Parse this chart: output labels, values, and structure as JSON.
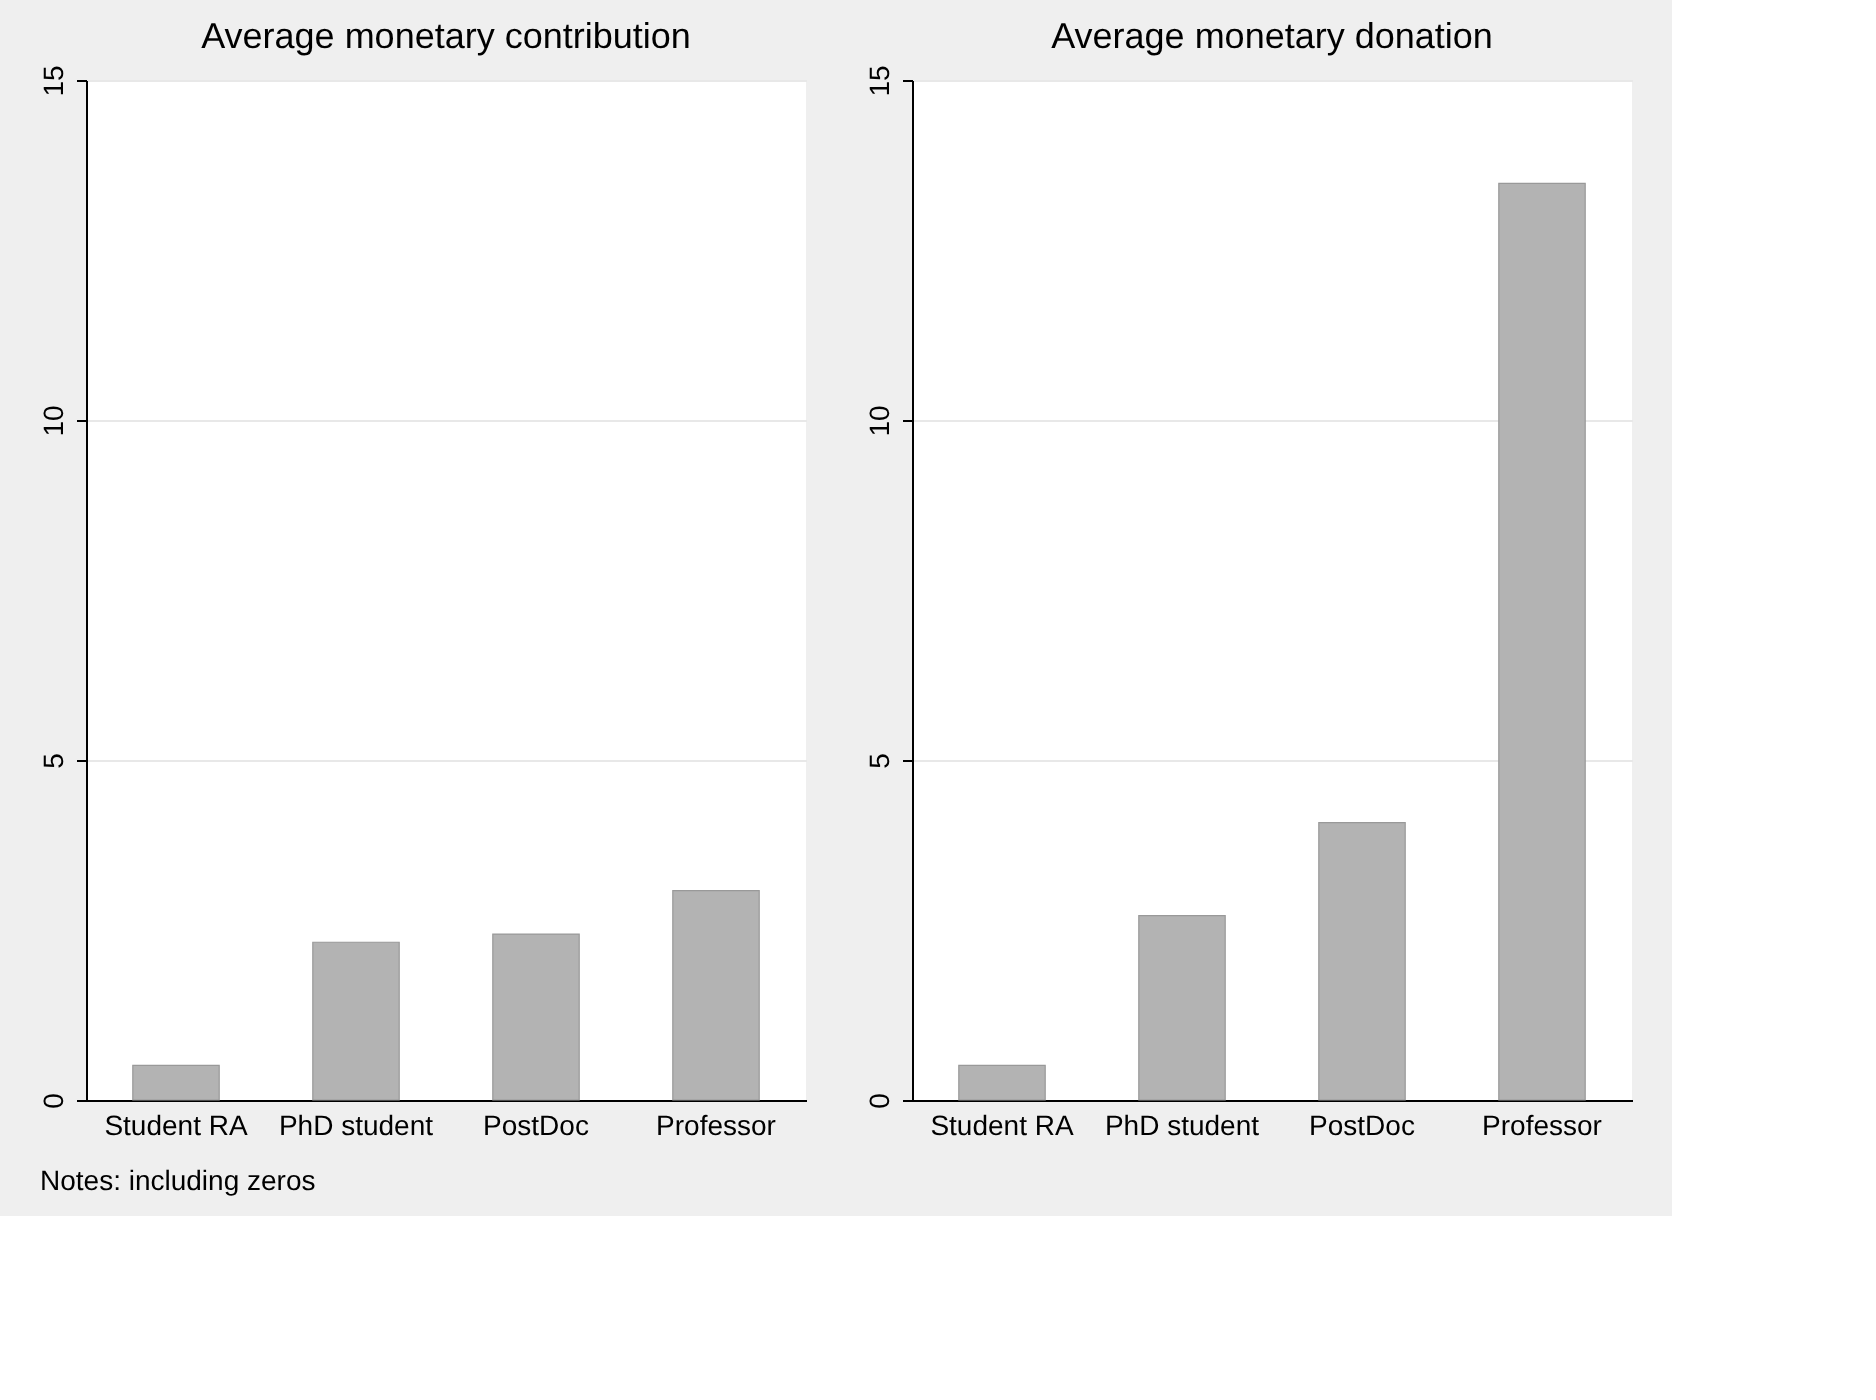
{
  "chart_data": [
    {
      "type": "bar",
      "title": "Average monetary contribution",
      "categories": [
        "Student RA",
        "PhD student",
        "PostDoc",
        "Professor"
      ],
      "values": [
        0.51,
        2.32,
        2.44,
        3.08
      ],
      "color": "#b3b3b3",
      "ylim": [
        0,
        15
      ],
      "yticks": [
        0,
        5,
        10,
        15
      ],
      "grid": "y",
      "annotations": [
        "Notes: including zeros"
      ]
    },
    {
      "type": "bar",
      "title": "Average monetary donation",
      "categories": [
        "Student RA",
        "PhD student",
        "PostDoc",
        "Professor"
      ],
      "values": [
        0.51,
        2.71,
        4.08,
        13.48
      ],
      "color": "#b3b3b3",
      "ylim": [
        0,
        15
      ],
      "yticks": [
        0,
        5,
        10,
        15
      ],
      "grid": "y"
    }
  ]
}
